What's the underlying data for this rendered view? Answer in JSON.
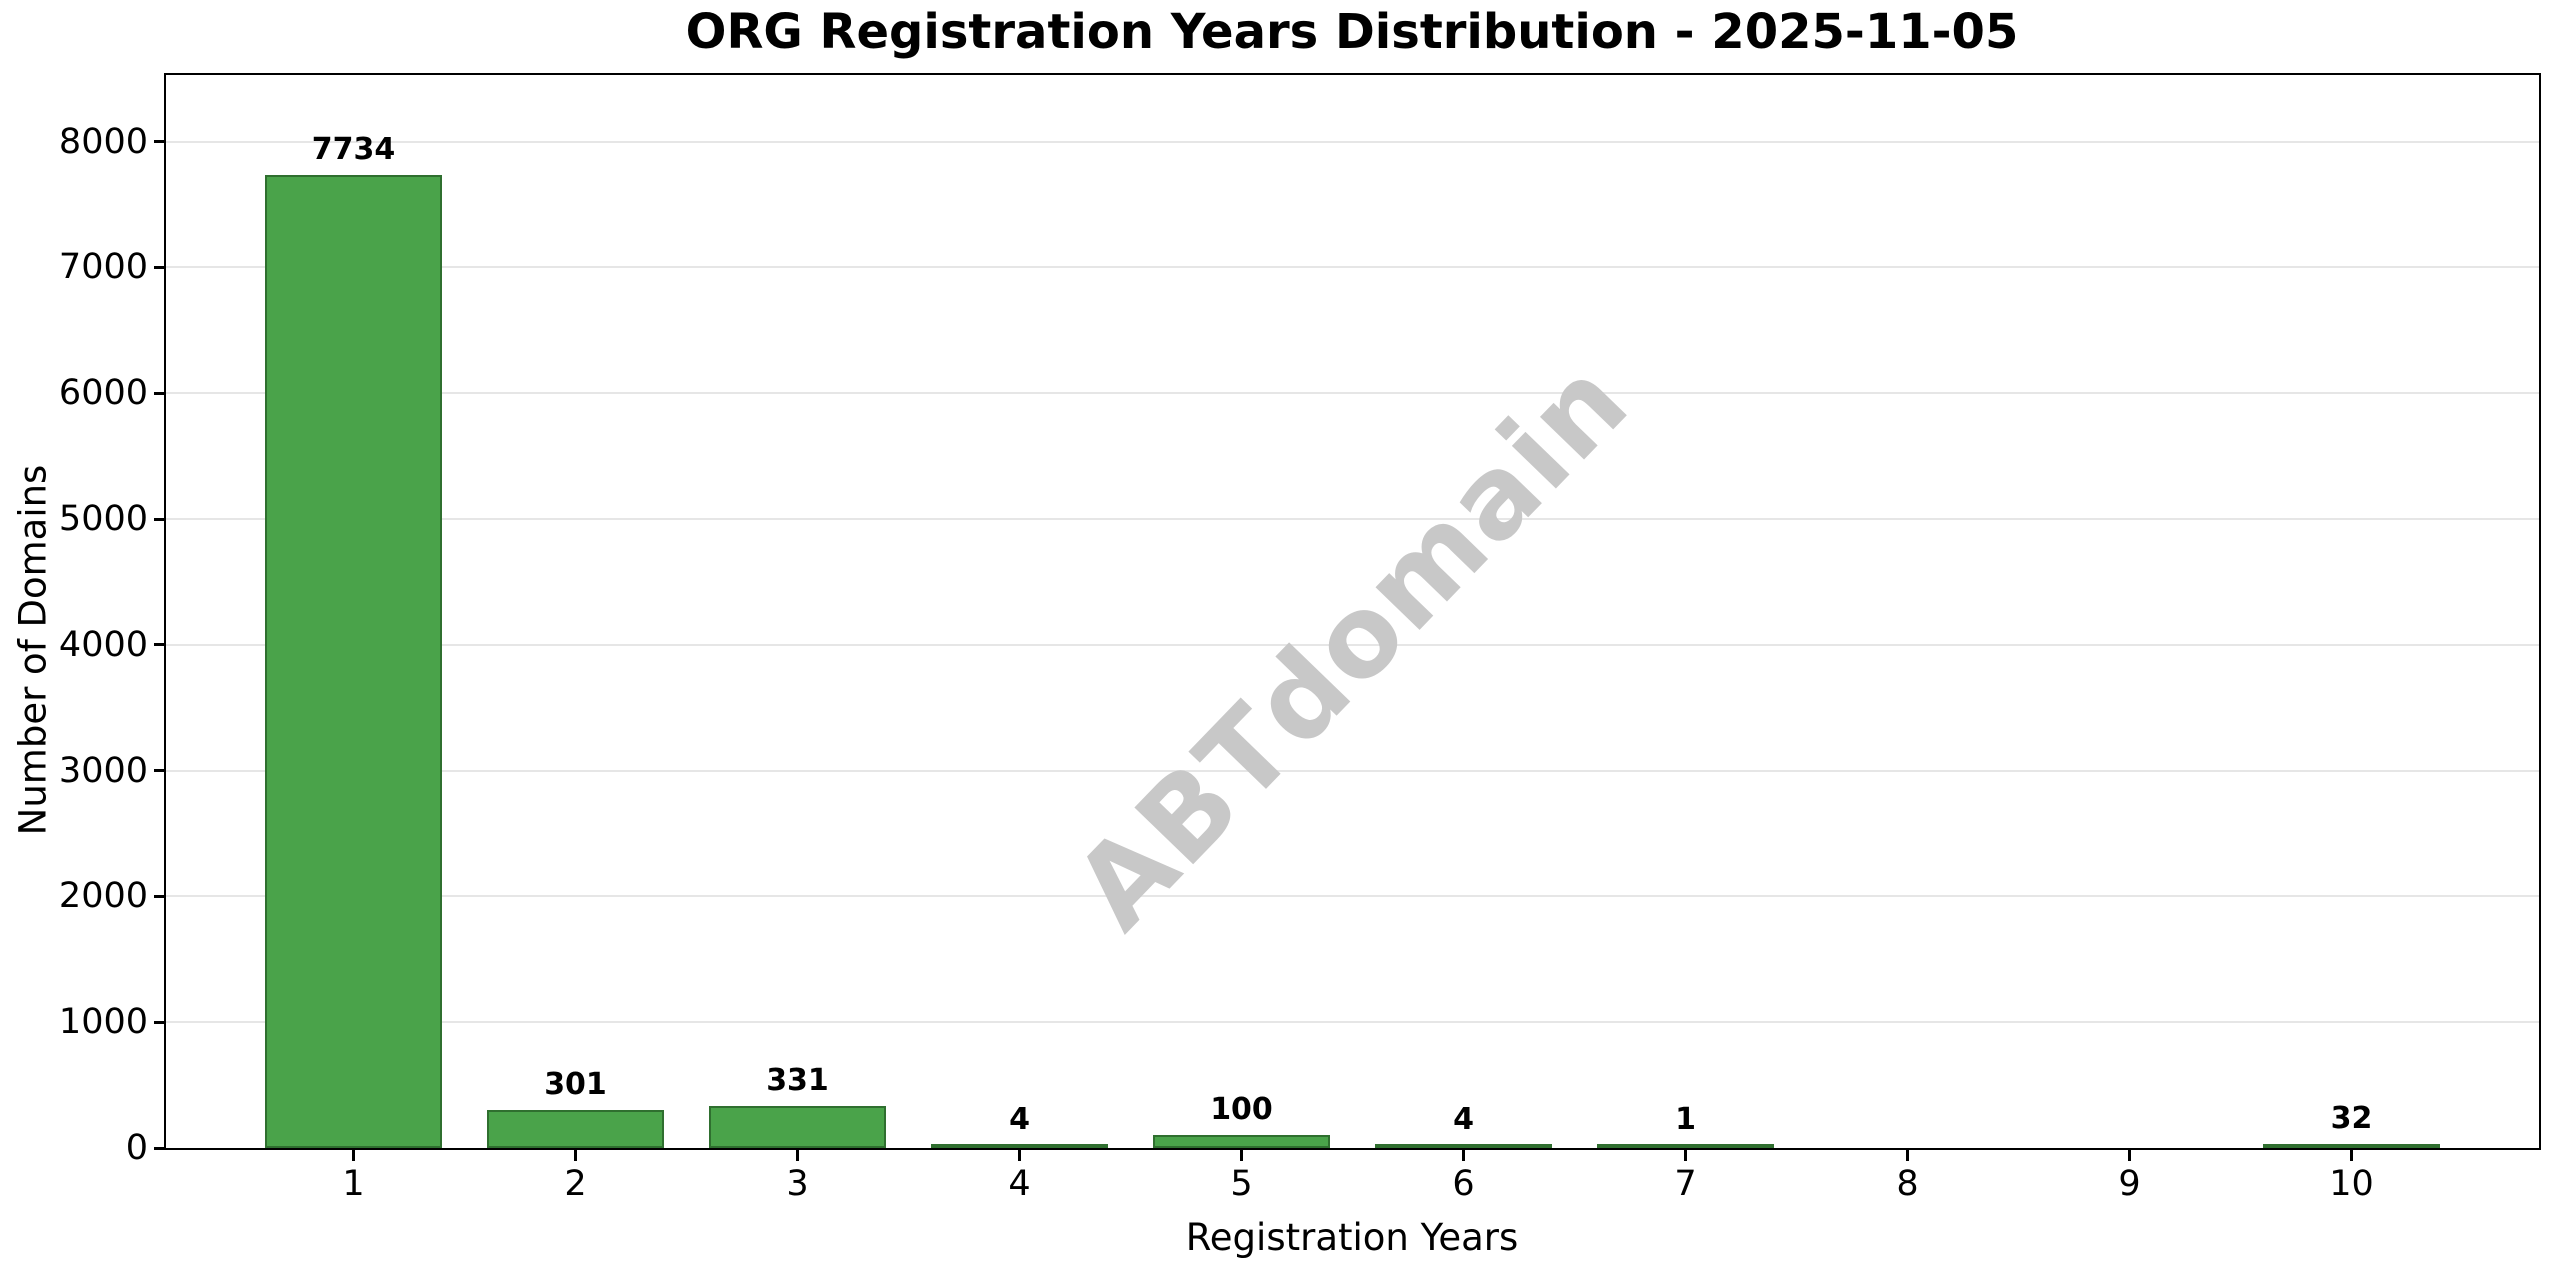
{
  "title": "ORG Registration Years Distribution - 2025-11-05",
  "watermark": {
    "text": "ABTdomain",
    "color": "#c8c8c8",
    "rotation_deg": -46
  },
  "chart_data": {
    "type": "bar",
    "title": "ORG Registration Years Distribution - 2025-11-05",
    "xlabel": "Registration Years",
    "ylabel": "Number of Domains",
    "categories": [
      "1",
      "2",
      "3",
      "4",
      "5",
      "6",
      "7",
      "8",
      "9",
      "10"
    ],
    "values": [
      7734,
      301,
      331,
      4,
      100,
      4,
      1,
      0,
      0,
      32
    ],
    "value_labels_shown": [
      "7734",
      "301",
      "331",
      "4",
      "100",
      "4",
      "1",
      "",
      "",
      "32"
    ],
    "yticks": [
      0,
      1000,
      2000,
      3000,
      4000,
      5000,
      6000,
      7000,
      8000
    ],
    "ylim": [
      0,
      8530
    ],
    "grid": "horizontal",
    "legend": "none",
    "bar_fill_color": "#4aa34a",
    "bar_edge_color": "#2f6f2f",
    "gridline_color": "#e6e6e6",
    "spine_color": "#000000",
    "background_color": "#ffffff"
  }
}
